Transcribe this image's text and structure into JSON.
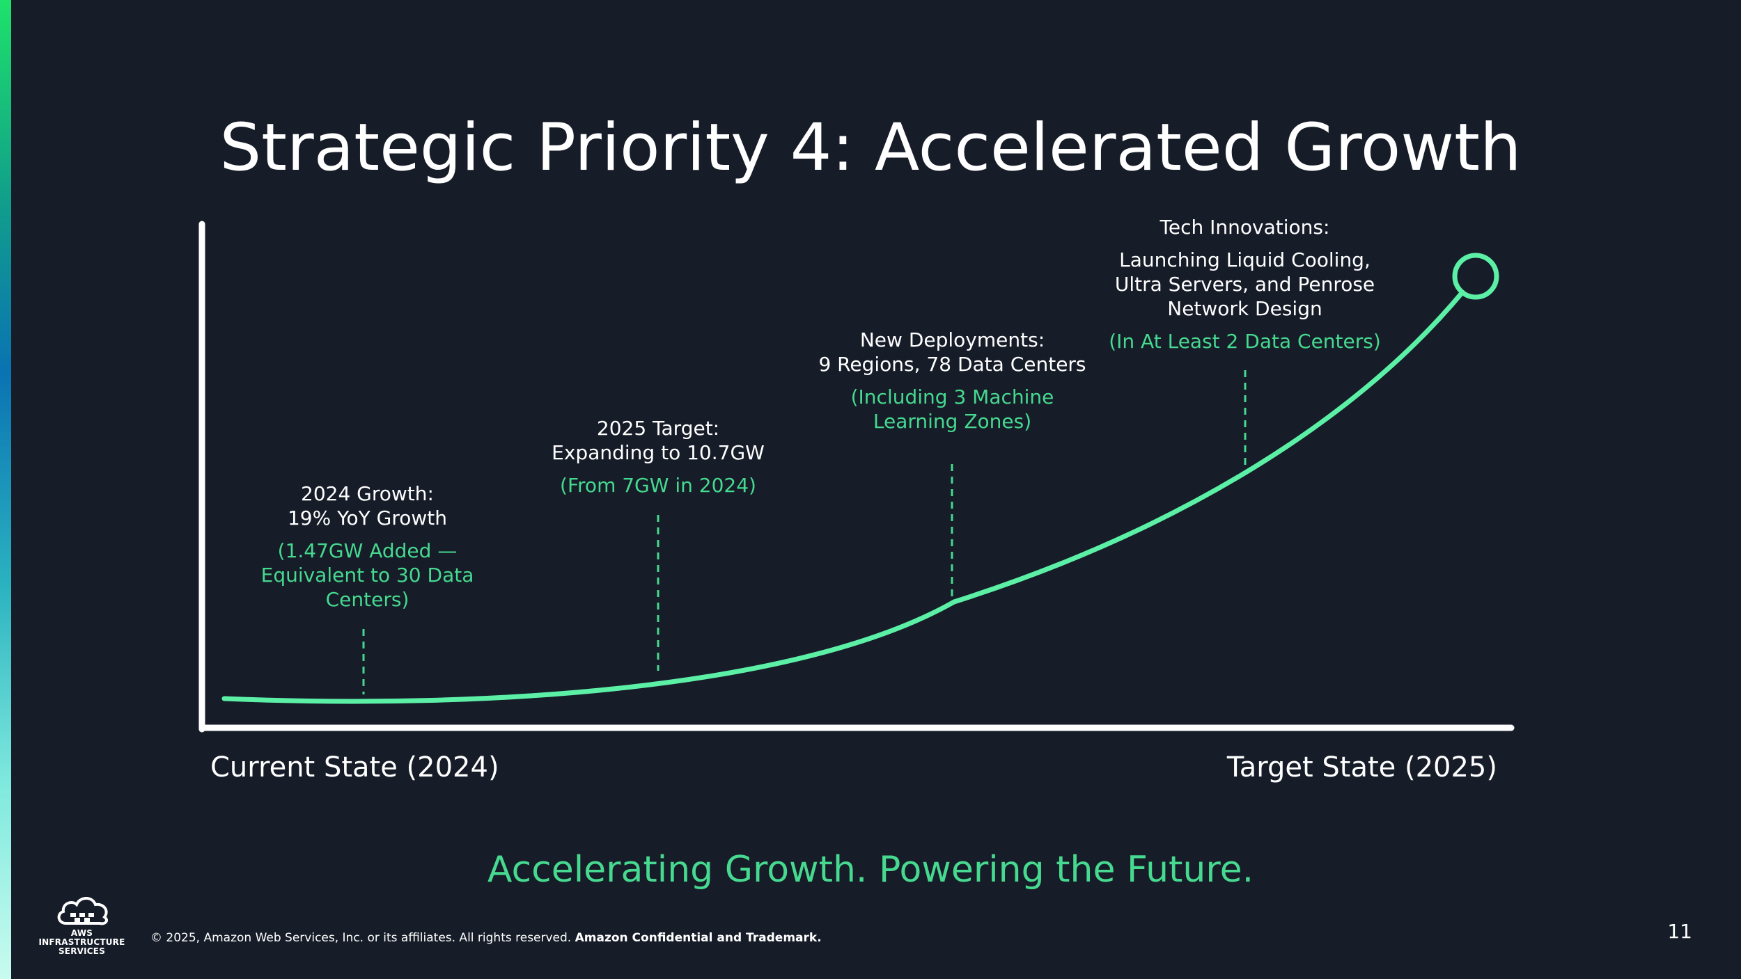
{
  "slide": {
    "title": "Strategic Priority 4: Accelerated Growth",
    "tagline": "Accelerating Growth. Powering the Future.",
    "page_number": "11",
    "accent_color": "#46d98f",
    "background_color": "#161c28"
  },
  "axes": {
    "x_start_label": "Current State (2024)",
    "x_end_label": "Target State (2025)"
  },
  "milestones": [
    {
      "title": "2024 Growth:",
      "detail": "19% YoY Growth",
      "note_lines": [
        "(1.47GW Added —",
        "Equivalent to 30 Data",
        "Centers)"
      ]
    },
    {
      "title": "2025 Target:",
      "detail": "Expanding to 10.7GW",
      "note_lines": [
        "(From 7GW in 2024)"
      ]
    },
    {
      "title": "New Deployments:",
      "detail": "9 Regions, 78 Data Centers",
      "note_lines": [
        "(Including 3 Machine",
        "Learning Zones)"
      ]
    },
    {
      "title": "Tech Innovations:",
      "detail_lines": [
        "Launching Liquid Cooling,",
        "Ultra Servers, and Penrose",
        "Network Design"
      ],
      "note_lines": [
        "(In At Least 2 Data Centers)"
      ]
    }
  ],
  "footer": {
    "copyright": "© 2025, Amazon Web Services, Inc. or its affiliates. All rights reserved.",
    "confidential": "Amazon Confidential and Trademark.",
    "logo_line1": "AWS INFRASTRUCTURE",
    "logo_line2": "SERVICES",
    "logo_icon": "cloud-icon"
  }
}
